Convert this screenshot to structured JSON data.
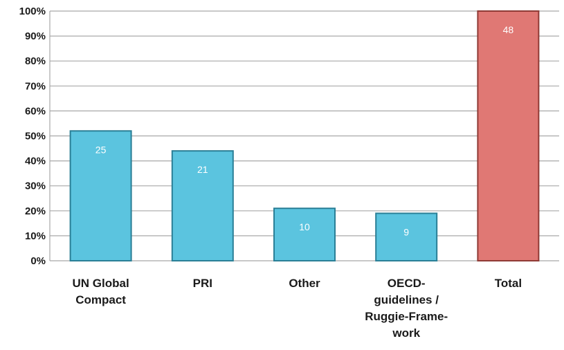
{
  "chart_data": {
    "type": "bar",
    "categories": [
      [
        "UN Global",
        "Compact"
      ],
      [
        "PRI"
      ],
      [
        "Other"
      ],
      [
        "OECD-",
        "guidelines /",
        "Ruggie-Frame-",
        "work"
      ],
      [
        "Total"
      ]
    ],
    "values": [
      52,
      44,
      21,
      19,
      100
    ],
    "data_labels": [
      "25",
      "21",
      "10",
      "9",
      "48"
    ],
    "bar_colors": [
      "#5bc4df",
      "#5bc4df",
      "#5bc4df",
      "#5bc4df",
      "#e07874"
    ],
    "bar_stroke_colors": [
      "#2a7f96",
      "#2a7f96",
      "#2a7f96",
      "#2a7f96",
      "#8f3a35"
    ],
    "ylim": [
      0,
      100
    ],
    "ytick_values": [
      0,
      10,
      20,
      30,
      40,
      50,
      60,
      70,
      80,
      90,
      100
    ],
    "ytick_labels": [
      "0%",
      "10%",
      "20%",
      "30%",
      "40%",
      "50%",
      "60%",
      "70%",
      "80%",
      "90%",
      "100%"
    ],
    "grid": true,
    "title": "",
    "xlabel": "",
    "ylabel": ""
  }
}
